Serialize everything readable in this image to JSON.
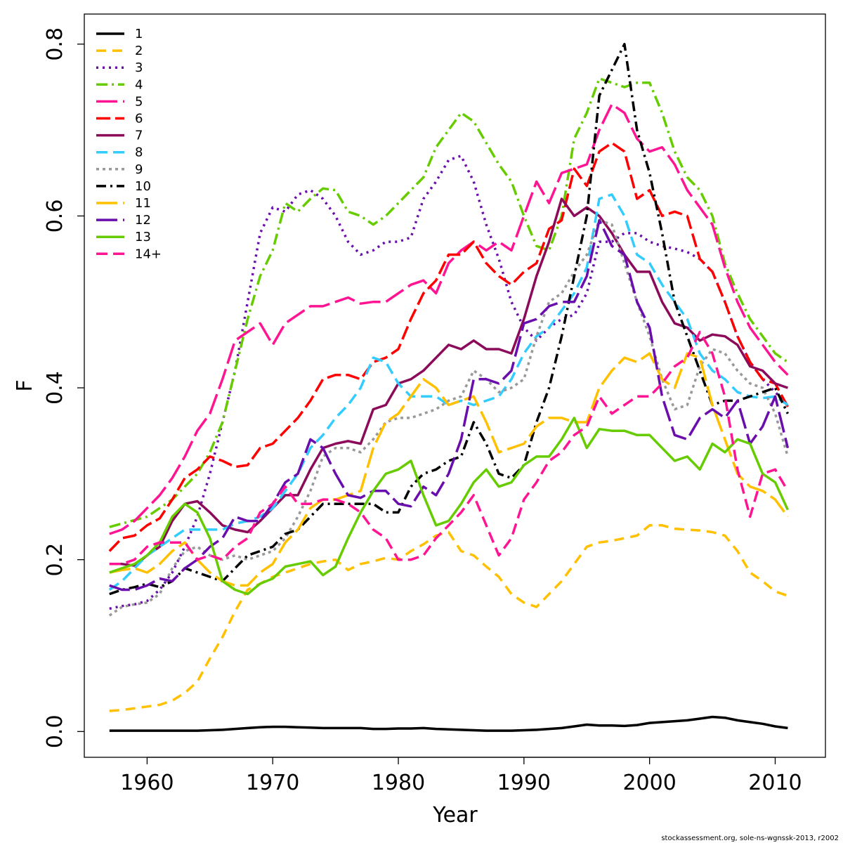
{
  "chart_data": {
    "type": "line",
    "xlabel": "Year",
    "ylabel": "F",
    "xlim": [
      1955,
      2014
    ],
    "ylim": [
      -0.03,
      0.835
    ],
    "xticks": [
      1960,
      1970,
      1980,
      1990,
      2000,
      2010
    ],
    "yticks": [
      0.0,
      0.2,
      0.4,
      0.6,
      0.8
    ],
    "ytick_labels": [
      "0.0",
      "0.2",
      "0.4",
      "0.6",
      "0.8"
    ],
    "legend_position": "top-left",
    "x": [
      1957,
      1958,
      1959,
      1960,
      1961,
      1962,
      1963,
      1964,
      1965,
      1966,
      1967,
      1968,
      1969,
      1970,
      1971,
      1972,
      1973,
      1974,
      1975,
      1976,
      1977,
      1978,
      1979,
      1980,
      1981,
      1982,
      1983,
      1984,
      1985,
      1986,
      1987,
      1988,
      1989,
      1990,
      1991,
      1992,
      1993,
      1994,
      1995,
      1996,
      1997,
      1998,
      1999,
      2000,
      2001,
      2002,
      2003,
      2004,
      2005,
      2006,
      2007,
      2008,
      2009,
      2010,
      2011
    ],
    "series": [
      {
        "name": "1",
        "color": "#000000",
        "dash": "",
        "values": [
          0.001,
          0.001,
          0.001,
          0.001,
          0.001,
          0.001,
          0.001,
          0.001,
          0.0015,
          0.002,
          0.003,
          0.004,
          0.005,
          0.0055,
          0.0055,
          0.005,
          0.0045,
          0.004,
          0.004,
          0.004,
          0.004,
          0.003,
          0.003,
          0.0035,
          0.0035,
          0.004,
          0.003,
          0.0025,
          0.002,
          0.0015,
          0.001,
          0.001,
          0.001,
          0.0015,
          0.002,
          0.003,
          0.004,
          0.006,
          0.008,
          0.007,
          0.007,
          0.0065,
          0.0075,
          0.01,
          0.011,
          0.012,
          0.013,
          0.015,
          0.017,
          0.016,
          0.013,
          0.011,
          0.009,
          0.006,
          0.004
        ]
      },
      {
        "name": "2",
        "color": "#ffc000",
        "dash": "14,9",
        "values": [
          0.024,
          0.025,
          0.027,
          0.029,
          0.031,
          0.036,
          0.045,
          0.058,
          0.085,
          0.11,
          0.14,
          0.165,
          0.172,
          0.18,
          0.185,
          0.19,
          0.195,
          0.198,
          0.2,
          0.188,
          0.195,
          0.198,
          0.202,
          0.2,
          0.21,
          0.218,
          0.228,
          0.232,
          0.21,
          0.205,
          0.192,
          0.18,
          0.16,
          0.15,
          0.145,
          0.16,
          0.175,
          0.195,
          0.215,
          0.22,
          0.222,
          0.225,
          0.228,
          0.24,
          0.24,
          0.236,
          0.235,
          0.234,
          0.232,
          0.228,
          0.21,
          0.185,
          0.175,
          0.163,
          0.158
        ]
      },
      {
        "name": "3",
        "color": "#6a0dad",
        "dash": "3,6",
        "values": [
          0.143,
          0.146,
          0.148,
          0.152,
          0.165,
          0.185,
          0.215,
          0.25,
          0.3,
          0.36,
          0.42,
          0.5,
          0.58,
          0.61,
          0.605,
          0.625,
          0.63,
          0.62,
          0.6,
          0.57,
          0.555,
          0.56,
          0.57,
          0.57,
          0.575,
          0.62,
          0.64,
          0.665,
          0.67,
          0.64,
          0.59,
          0.55,
          0.5,
          0.47,
          0.455,
          0.47,
          0.48,
          0.485,
          0.51,
          0.57,
          0.57,
          0.58,
          0.58,
          0.57,
          0.565,
          0.562,
          0.558,
          0.55,
          0.535,
          0.5,
          0.46,
          0.43,
          0.41,
          0.395,
          0.38
        ]
      },
      {
        "name": "4",
        "color": "#66cc00",
        "dash": "16,6,3,6",
        "values": [
          0.238,
          0.242,
          0.246,
          0.25,
          0.26,
          0.27,
          0.285,
          0.3,
          0.325,
          0.36,
          0.42,
          0.48,
          0.53,
          0.56,
          0.615,
          0.605,
          0.62,
          0.632,
          0.63,
          0.605,
          0.6,
          0.59,
          0.6,
          0.615,
          0.63,
          0.645,
          0.68,
          0.7,
          0.72,
          0.71,
          0.685,
          0.66,
          0.64,
          0.6,
          0.565,
          0.56,
          0.6,
          0.69,
          0.72,
          0.76,
          0.755,
          0.75,
          0.755,
          0.755,
          0.72,
          0.675,
          0.645,
          0.63,
          0.6,
          0.545,
          0.51,
          0.48,
          0.46,
          0.44,
          0.43
        ]
      },
      {
        "name": "5",
        "color": "#ff1493",
        "dash": "30,8",
        "values": [
          0.23,
          0.235,
          0.245,
          0.26,
          0.275,
          0.295,
          0.32,
          0.35,
          0.37,
          0.41,
          0.455,
          0.465,
          0.475,
          0.45,
          0.475,
          0.485,
          0.495,
          0.495,
          0.5,
          0.505,
          0.498,
          0.5,
          0.5,
          0.51,
          0.52,
          0.525,
          0.51,
          0.545,
          0.56,
          0.57,
          0.56,
          0.57,
          0.56,
          0.6,
          0.64,
          0.615,
          0.65,
          0.655,
          0.66,
          0.7,
          0.73,
          0.72,
          0.69,
          0.675,
          0.68,
          0.66,
          0.63,
          0.61,
          0.59,
          0.54,
          0.5,
          0.47,
          0.45,
          0.43,
          0.415
        ]
      },
      {
        "name": "6",
        "color": "#ff0000",
        "dash": "20,7",
        "values": [
          0.21,
          0.225,
          0.228,
          0.24,
          0.248,
          0.27,
          0.295,
          0.305,
          0.32,
          0.315,
          0.308,
          0.31,
          0.33,
          0.335,
          0.35,
          0.365,
          0.385,
          0.41,
          0.415,
          0.415,
          0.41,
          0.43,
          0.435,
          0.445,
          0.48,
          0.51,
          0.525,
          0.555,
          0.555,
          0.57,
          0.545,
          0.53,
          0.52,
          0.535,
          0.545,
          0.585,
          0.595,
          0.655,
          0.635,
          0.675,
          0.685,
          0.675,
          0.62,
          0.63,
          0.6,
          0.605,
          0.6,
          0.55,
          0.535,
          0.5,
          0.46,
          0.43,
          0.41,
          0.405,
          0.378
        ]
      },
      {
        "name": "7",
        "color": "#8b0a5a",
        "dash": "",
        "values": [
          0.195,
          0.195,
          0.193,
          0.205,
          0.215,
          0.245,
          0.265,
          0.268,
          0.255,
          0.24,
          0.235,
          0.232,
          0.245,
          0.26,
          0.275,
          0.275,
          0.305,
          0.33,
          0.335,
          0.338,
          0.335,
          0.375,
          0.38,
          0.405,
          0.41,
          0.42,
          0.435,
          0.45,
          0.445,
          0.455,
          0.445,
          0.445,
          0.44,
          0.48,
          0.53,
          0.57,
          0.62,
          0.6,
          0.61,
          0.6,
          0.58,
          0.555,
          0.535,
          0.535,
          0.5,
          0.475,
          0.47,
          0.455,
          0.462,
          0.46,
          0.45,
          0.425,
          0.42,
          0.405,
          0.4
        ]
      },
      {
        "name": "8",
        "color": "#33ccff",
        "dash": "16,8",
        "values": [
          0.165,
          0.175,
          0.19,
          0.205,
          0.215,
          0.225,
          0.235,
          0.235,
          0.235,
          0.235,
          0.242,
          0.245,
          0.25,
          0.26,
          0.28,
          0.3,
          0.33,
          0.345,
          0.365,
          0.38,
          0.4,
          0.435,
          0.43,
          0.405,
          0.39,
          0.39,
          0.39,
          0.38,
          0.385,
          0.38,
          0.385,
          0.39,
          0.41,
          0.44,
          0.46,
          0.47,
          0.49,
          0.51,
          0.54,
          0.62,
          0.625,
          0.6,
          0.555,
          0.545,
          0.52,
          0.5,
          0.48,
          0.44,
          0.42,
          0.41,
          0.395,
          0.39,
          0.388,
          0.39,
          0.38
        ]
      },
      {
        "name": "9",
        "color": "#999999",
        "dash": "4,5",
        "values": [
          0.135,
          0.145,
          0.148,
          0.15,
          0.16,
          0.19,
          0.21,
          0.215,
          0.205,
          0.2,
          0.205,
          0.2,
          0.205,
          0.21,
          0.225,
          0.25,
          0.28,
          0.32,
          0.33,
          0.33,
          0.325,
          0.34,
          0.36,
          0.365,
          0.365,
          0.37,
          0.375,
          0.385,
          0.39,
          0.42,
          0.41,
          0.395,
          0.4,
          0.41,
          0.46,
          0.5,
          0.51,
          0.535,
          0.555,
          0.595,
          0.59,
          0.545,
          0.5,
          0.46,
          0.41,
          0.375,
          0.38,
          0.425,
          0.445,
          0.44,
          0.42,
          0.405,
          0.4,
          0.37,
          0.32
        ]
      },
      {
        "name": "10",
        "color": "#000000",
        "dash": "14,6,3,6",
        "values": [
          0.16,
          0.165,
          0.168,
          0.172,
          0.168,
          0.175,
          0.19,
          0.185,
          0.18,
          0.175,
          0.19,
          0.205,
          0.21,
          0.215,
          0.23,
          0.235,
          0.25,
          0.265,
          0.265,
          0.265,
          0.265,
          0.265,
          0.255,
          0.255,
          0.285,
          0.3,
          0.305,
          0.315,
          0.32,
          0.36,
          0.335,
          0.3,
          0.295,
          0.31,
          0.36,
          0.4,
          0.46,
          0.53,
          0.6,
          0.74,
          0.77,
          0.8,
          0.7,
          0.65,
          0.58,
          0.5,
          0.46,
          0.42,
          0.38,
          0.385,
          0.385,
          0.39,
          0.395,
          0.4,
          0.37
        ]
      },
      {
        "name": "11",
        "color": "#ffc000",
        "dash": "30,8",
        "values": [
          0.185,
          0.188,
          0.19,
          0.185,
          0.195,
          0.21,
          0.22,
          0.2,
          0.185,
          0.175,
          0.17,
          0.17,
          0.185,
          0.195,
          0.22,
          0.235,
          0.26,
          0.27,
          0.27,
          0.275,
          0.28,
          0.33,
          0.36,
          0.37,
          0.39,
          0.41,
          0.4,
          0.38,
          0.385,
          0.39,
          0.36,
          0.325,
          0.33,
          0.335,
          0.355,
          0.365,
          0.365,
          0.36,
          0.36,
          0.4,
          0.42,
          0.435,
          0.43,
          0.44,
          0.41,
          0.4,
          0.44,
          0.435,
          0.38,
          0.34,
          0.3,
          0.285,
          0.28,
          0.27,
          0.25
        ]
      },
      {
        "name": "12",
        "color": "#6a0dad",
        "dash": "30,8",
        "values": [
          0.17,
          0.165,
          0.165,
          0.17,
          0.178,
          0.175,
          0.19,
          0.2,
          0.215,
          0.225,
          0.25,
          0.245,
          0.245,
          0.265,
          0.29,
          0.3,
          0.34,
          0.33,
          0.3,
          0.275,
          0.272,
          0.28,
          0.28,
          0.265,
          0.262,
          0.285,
          0.275,
          0.3,
          0.34,
          0.41,
          0.41,
          0.405,
          0.42,
          0.475,
          0.48,
          0.495,
          0.5,
          0.5,
          0.53,
          0.595,
          0.565,
          0.555,
          0.5,
          0.47,
          0.39,
          0.345,
          0.34,
          0.365,
          0.375,
          0.365,
          0.385,
          0.335,
          0.355,
          0.39,
          0.33
        ]
      },
      {
        "name": "13",
        "color": "#66cc00",
        "dash": "",
        "values": [
          0.185,
          0.19,
          0.195,
          0.205,
          0.22,
          0.25,
          0.265,
          0.255,
          0.225,
          0.175,
          0.165,
          0.16,
          0.172,
          0.178,
          0.192,
          0.195,
          0.198,
          0.182,
          0.192,
          0.225,
          0.255,
          0.28,
          0.3,
          0.305,
          0.315,
          0.275,
          0.24,
          0.245,
          0.265,
          0.29,
          0.305,
          0.285,
          0.29,
          0.31,
          0.32,
          0.32,
          0.34,
          0.365,
          0.33,
          0.352,
          0.35,
          0.35,
          0.345,
          0.345,
          0.33,
          0.315,
          0.32,
          0.305,
          0.335,
          0.325,
          0.34,
          0.335,
          0.3,
          0.29,
          0.258
        ]
      },
      {
        "name": "14+",
        "color": "#ff1493",
        "dash": "16,8",
        "values": [
          0.195,
          0.195,
          0.2,
          0.215,
          0.22,
          0.22,
          0.22,
          0.2,
          0.205,
          0.2,
          0.215,
          0.225,
          0.255,
          0.265,
          0.285,
          0.265,
          0.265,
          0.27,
          0.27,
          0.265,
          0.255,
          0.235,
          0.225,
          0.2,
          0.2,
          0.205,
          0.225,
          0.24,
          0.255,
          0.275,
          0.24,
          0.205,
          0.225,
          0.27,
          0.29,
          0.315,
          0.325,
          0.345,
          0.355,
          0.39,
          0.37,
          0.38,
          0.39,
          0.39,
          0.405,
          0.425,
          0.435,
          0.465,
          0.44,
          0.39,
          0.305,
          0.25,
          0.3,
          0.305,
          0.28
        ]
      }
    ]
  },
  "credit": "stockassessment.org, sole-ns-wgnssk-2013, r2002"
}
